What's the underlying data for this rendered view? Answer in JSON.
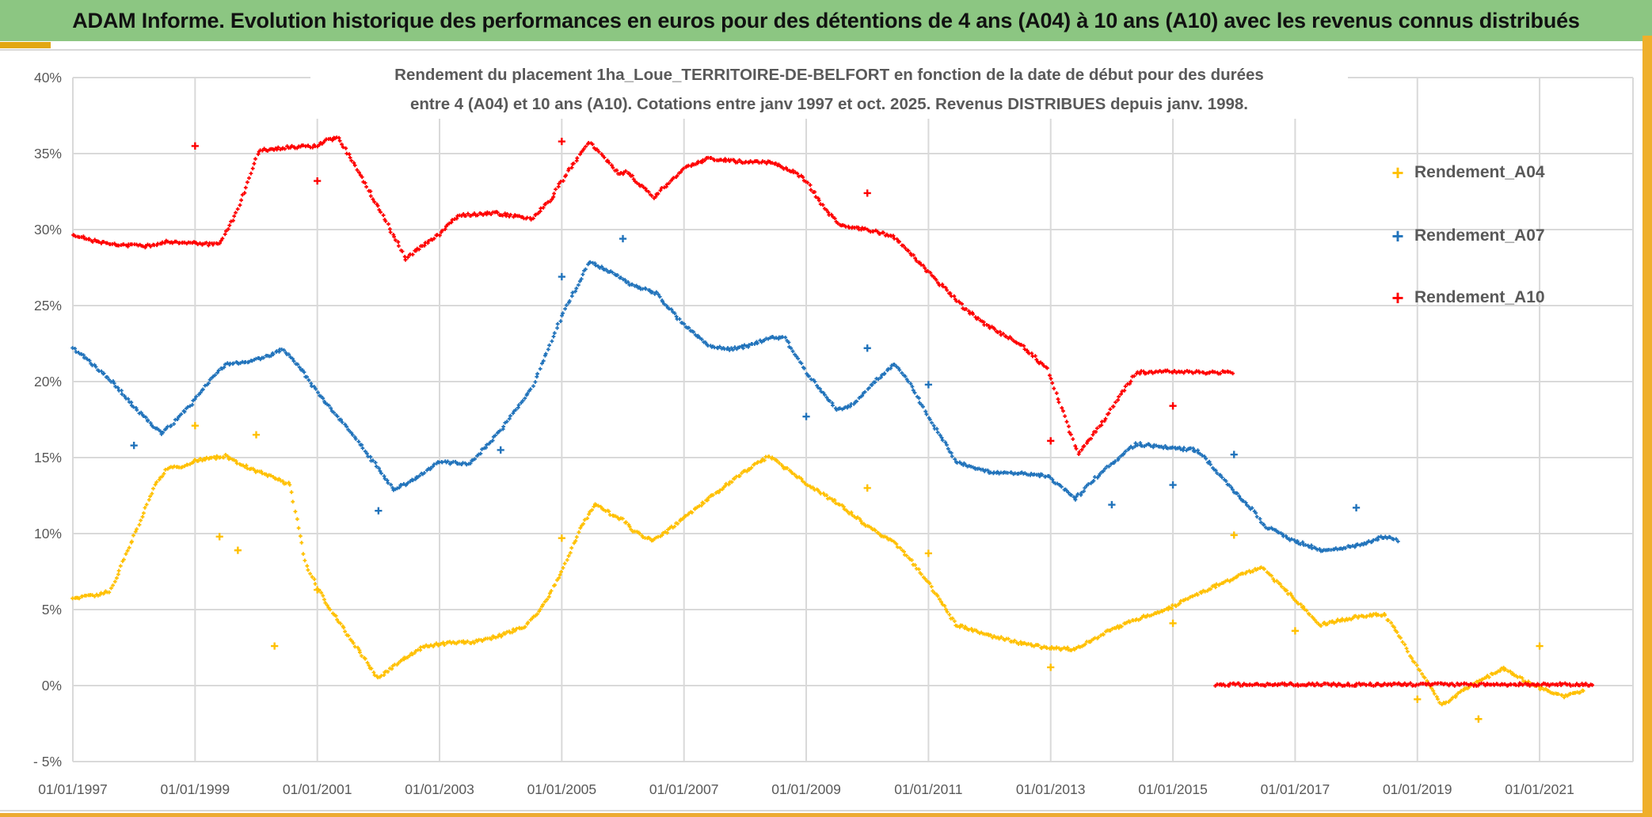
{
  "header": {
    "title": "ADAM Informe. Evolution historique des performances en euros pour des détentions de 4 ans (A04) à 10 ans (A10) avec les revenus connus distribués",
    "bg_color": "#8CC682",
    "accent_color": "#EDAB33"
  },
  "chart": {
    "title_line1": "Rendement du placement 1ha_Loue_TERRITOIRE-DE-BELFORT en fonction de la date de début pour des durées",
    "title_line2": "entre 4 (A04) et 10 ans (A10). Cotations entre janv 1997 et oct. 2025. Revenus DISTRIBUES depuis janv. 1998.",
    "text_color": "#595959",
    "grid_color": "#D9D9D9",
    "y_axis": {
      "ticks": [
        [
          40,
          "40%"
        ],
        [
          35,
          "35%"
        ],
        [
          30,
          "30%"
        ],
        [
          25,
          "25%"
        ],
        [
          20,
          "20%"
        ],
        [
          15,
          "15%"
        ],
        [
          10,
          "10%"
        ],
        [
          5,
          "5%"
        ],
        [
          0,
          "0%"
        ],
        [
          -5,
          "- 5%"
        ]
      ]
    },
    "x_axis": {
      "ticks": [
        [
          1997,
          "01/01/1997"
        ],
        [
          1999,
          "01/01/1999"
        ],
        [
          2001,
          "01/01/2001"
        ],
        [
          2003,
          "01/01/2003"
        ],
        [
          2005,
          "01/01/2005"
        ],
        [
          2007,
          "01/01/2007"
        ],
        [
          2009,
          "01/01/2009"
        ],
        [
          2011,
          "01/01/2011"
        ],
        [
          2013,
          "01/01/2013"
        ],
        [
          2015,
          "01/01/2015"
        ],
        [
          2017,
          "01/01/2017"
        ],
        [
          2019,
          "01/01/2019"
        ],
        [
          2021,
          "01/01/2021"
        ]
      ]
    },
    "legend": [
      {
        "label": "Rendement_A04",
        "color": "#FFC000"
      },
      {
        "label": "Rendement_A07",
        "color": "#2173BB"
      },
      {
        "label": "Rendement_A10",
        "color": "#FE0000"
      }
    ],
    "chart_data": {
      "type": "scatter",
      "title": "Rendement du placement 1ha_Loue_TERRITOIRE-DE-BELFORT en fonction de la date de début pour des durées entre 4 (A04) et 10 ans (A10). Cotations entre janv 1997 et oct. 2025. Revenus DISTRIBUES depuis janv. 1998.",
      "xlabel": "",
      "ylabel": "",
      "ylim": [
        -5,
        40
      ],
      "x_range": [
        1997.0,
        2022.5
      ],
      "grid": true,
      "legend_position": "right",
      "marker": "plus",
      "series": [
        {
          "name": "Rendement_A04",
          "color": "#FFC000",
          "segments": [
            [
              [
                1997.0,
                5.7
              ],
              [
                1997.3,
                5.9
              ],
              [
                1997.6,
                6.2
              ],
              [
                1998.0,
                9.8
              ],
              [
                1998.35,
                13.2
              ],
              [
                1998.55,
                14.3
              ],
              [
                1998.8,
                14.4
              ],
              [
                1999.0,
                14.8
              ],
              [
                1999.5,
                15.1
              ],
              [
                1999.75,
                14.6
              ],
              [
                2000.0,
                14.1
              ],
              [
                2000.3,
                13.7
              ],
              [
                2000.55,
                13.2
              ],
              [
                2000.8,
                8.2
              ],
              [
                2001.0,
                6.4
              ],
              [
                2001.3,
                4.5
              ],
              [
                2001.6,
                2.8
              ],
              [
                2002.0,
                0.45
              ],
              [
                2002.3,
                1.4
              ],
              [
                2002.7,
                2.5
              ],
              [
                2003.0,
                2.75
              ],
              [
                2003.6,
                2.9
              ],
              [
                2004.0,
                3.3
              ],
              [
                2004.4,
                3.9
              ],
              [
                2004.7,
                5.3
              ],
              [
                2005.0,
                7.5
              ],
              [
                2005.3,
                10.3
              ],
              [
                2005.55,
                12.0
              ],
              [
                2005.8,
                11.3
              ],
              [
                2006.0,
                10.9
              ],
              [
                2006.2,
                10.1
              ],
              [
                2006.5,
                9.5
              ],
              [
                2006.9,
                10.7
              ],
              [
                2007.3,
                12.0
              ],
              [
                2007.7,
                13.2
              ],
              [
                2008.0,
                14.1
              ],
              [
                2008.4,
                15.1
              ],
              [
                2008.8,
                13.9
              ],
              [
                2009.0,
                13.3
              ],
              [
                2009.55,
                11.9
              ],
              [
                2010.0,
                10.5
              ],
              [
                2010.45,
                9.4
              ],
              [
                2010.7,
                8.3
              ],
              [
                2011.0,
                6.8
              ],
              [
                2011.45,
                4.0
              ],
              [
                2012.0,
                3.3
              ],
              [
                2012.5,
                2.8
              ],
              [
                2013.0,
                2.45
              ],
              [
                2013.4,
                2.4
              ],
              [
                2013.9,
                3.5
              ],
              [
                2014.3,
                4.2
              ],
              [
                2015.0,
                5.2
              ],
              [
                2015.5,
                6.2
              ],
              [
                2016.0,
                7.1
              ],
              [
                2016.45,
                7.8
              ],
              [
                2016.95,
                5.9
              ],
              [
                2017.4,
                4.0
              ],
              [
                2018.0,
                4.5
              ],
              [
                2018.45,
                4.7
              ],
              [
                2018.7,
                3.3
              ],
              [
                2018.9,
                1.8
              ],
              [
                2019.4,
                -1.3
              ],
              [
                2019.75,
                -0.3
              ],
              [
                2020.4,
                1.1
              ],
              [
                2020.9,
                0.0
              ],
              [
                2021.4,
                -0.7
              ],
              [
                2021.75,
                -0.3
              ]
            ]
          ],
          "outliers": [
            [
              1999.0,
              17.1
            ],
            [
              1999.4,
              9.8
            ],
            [
              1999.7,
              8.9
            ],
            [
              2000.0,
              16.5
            ],
            [
              2000.3,
              2.6
            ],
            [
              2001.0,
              6.3
            ],
            [
              2005.0,
              9.7
            ],
            [
              2010.0,
              13.0
            ],
            [
              2011.0,
              8.7
            ],
            [
              2013.0,
              1.2
            ],
            [
              2015.0,
              4.1
            ],
            [
              2016.0,
              9.9
            ],
            [
              2017.0,
              3.6
            ],
            [
              2019.0,
              -0.9
            ],
            [
              2020.0,
              -2.2
            ],
            [
              2021.0,
              2.6
            ]
          ]
        },
        {
          "name": "Rendement_A07",
          "color": "#2173BB",
          "segments": [
            [
              [
                1997.0,
                22.2
              ],
              [
                1997.3,
                21.2
              ],
              [
                1997.6,
                20.2
              ],
              [
                1998.0,
                18.3
              ],
              [
                1998.45,
                16.6
              ],
              [
                1998.7,
                17.5
              ],
              [
                1999.0,
                18.8
              ],
              [
                1999.3,
                20.4
              ],
              [
                1999.5,
                21.1
              ],
              [
                2000.05,
                21.5
              ],
              [
                2000.45,
                22.1
              ],
              [
                2000.7,
                21.0
              ],
              [
                2001.0,
                19.3
              ],
              [
                2001.5,
                16.9
              ],
              [
                2002.0,
                14.3
              ],
              [
                2002.25,
                12.9
              ],
              [
                2002.6,
                13.6
              ],
              [
                2003.0,
                14.7
              ],
              [
                2003.5,
                14.6
              ],
              [
                2004.0,
                16.8
              ],
              [
                2004.5,
                19.5
              ],
              [
                2005.0,
                24.3
              ],
              [
                2005.45,
                27.9
              ],
              [
                2005.95,
                26.9
              ],
              [
                2006.05,
                26.5
              ],
              [
                2006.55,
                25.8
              ],
              [
                2006.95,
                23.9
              ],
              [
                2007.4,
                22.4
              ],
              [
                2007.75,
                22.1
              ],
              [
                2008.1,
                22.4
              ],
              [
                2008.4,
                22.9
              ],
              [
                2008.65,
                22.9
              ],
              [
                2009.0,
                20.6
              ],
              [
                2009.5,
                18.1
              ],
              [
                2009.8,
                18.6
              ],
              [
                2010.0,
                19.5
              ],
              [
                2010.45,
                21.2
              ],
              [
                2010.7,
                19.8
              ],
              [
                2011.0,
                17.7
              ],
              [
                2011.45,
                14.7
              ],
              [
                2012.0,
                14.05
              ],
              [
                2012.5,
                14.0
              ],
              [
                2012.95,
                13.8
              ],
              [
                2013.4,
                12.3
              ],
              [
                2013.9,
                14.3
              ],
              [
                2014.4,
                15.9
              ],
              [
                2015.0,
                15.6
              ],
              [
                2015.4,
                15.5
              ],
              [
                2016.0,
                12.8
              ],
              [
                2016.3,
                11.6
              ],
              [
                2016.5,
                10.5
              ],
              [
                2016.95,
                9.6
              ],
              [
                2017.45,
                8.85
              ],
              [
                2018.0,
                9.2
              ],
              [
                2018.45,
                9.8
              ],
              [
                2018.7,
                9.5
              ]
            ]
          ],
          "outliers": [
            [
              1998.0,
              15.8
            ],
            [
              2002.0,
              11.5
            ],
            [
              2004.0,
              15.5
            ],
            [
              2005.0,
              26.9
            ],
            [
              2006.0,
              29.4
            ],
            [
              2009.0,
              17.7
            ],
            [
              2010.0,
              22.2
            ],
            [
              2011.0,
              19.8
            ],
            [
              2014.0,
              11.9
            ],
            [
              2015.0,
              13.2
            ],
            [
              2016.0,
              15.2
            ],
            [
              2018.0,
              11.7
            ]
          ]
        },
        {
          "name": "Rendement_A10",
          "color": "#FE0000",
          "segments": [
            [
              [
                1997.0,
                29.7
              ],
              [
                1997.3,
                29.3
              ],
              [
                1997.7,
                29.0
              ],
              [
                1998.2,
                28.9
              ],
              [
                1998.5,
                29.2
              ],
              [
                1999.0,
                29.1
              ],
              [
                1999.4,
                29.0
              ],
              [
                1999.7,
                31.3
              ],
              [
                2000.05,
                35.2
              ],
              [
                2000.5,
                35.4
              ],
              [
                2001.0,
                35.5
              ],
              [
                2001.15,
                35.9
              ],
              [
                2001.35,
                36.0
              ],
              [
                2001.7,
                33.6
              ],
              [
                2002.1,
                30.7
              ],
              [
                2002.45,
                28.1
              ],
              [
                2002.8,
                29.2
              ],
              [
                2003.0,
                29.7
              ],
              [
                2003.3,
                30.9
              ],
              [
                2003.9,
                31.1
              ],
              [
                2004.2,
                30.9
              ],
              [
                2004.5,
                30.7
              ],
              [
                2004.8,
                31.9
              ],
              [
                2005.1,
                33.8
              ],
              [
                2005.45,
                35.8
              ],
              [
                2005.95,
                33.6
              ],
              [
                2006.05,
                33.9
              ],
              [
                2006.5,
                32.1
              ],
              [
                2006.7,
                32.9
              ],
              [
                2007.0,
                34.0
              ],
              [
                2007.4,
                34.7
              ],
              [
                2007.8,
                34.5
              ],
              [
                2008.45,
                34.4
              ],
              [
                2008.8,
                33.8
              ],
              [
                2009.0,
                33.2
              ],
              [
                2009.3,
                31.4
              ],
              [
                2009.55,
                30.3
              ],
              [
                2010.0,
                30.0
              ],
              [
                2010.45,
                29.5
              ],
              [
                2011.0,
                27.2
              ],
              [
                2011.6,
                24.8
              ],
              [
                2011.95,
                23.7
              ],
              [
                2012.5,
                22.5
              ],
              [
                2012.95,
                20.8
              ],
              [
                2013.45,
                15.2
              ],
              [
                2013.9,
                17.6
              ],
              [
                2014.4,
                20.6
              ],
              [
                2015.0,
                20.65
              ],
              [
                2015.5,
                20.6
              ],
              [
                2016.0,
                20.6
              ]
            ],
            [
              [
                2015.7,
                0.07
              ],
              [
                2021.9,
                0.07
              ]
            ]
          ],
          "outliers": [
            [
              1999.0,
              35.5
            ],
            [
              2001.0,
              33.2
            ],
            [
              2005.0,
              35.8
            ],
            [
              2010.0,
              32.4
            ],
            [
              2013.0,
              16.1
            ],
            [
              2015.0,
              18.4
            ]
          ]
        }
      ]
    }
  }
}
